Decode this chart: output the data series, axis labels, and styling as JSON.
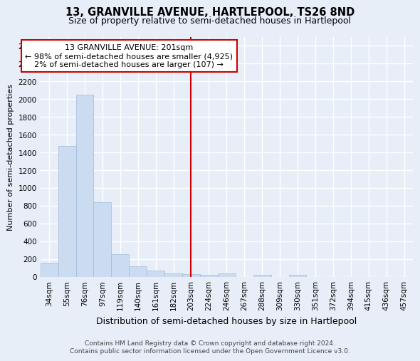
{
  "title": "13, GRANVILLE AVENUE, HARTLEPOOL, TS26 8ND",
  "subtitle": "Size of property relative to semi-detached houses in Hartlepool",
  "xlabel": "Distribution of semi-detached houses by size in Hartlepool",
  "ylabel": "Number of semi-detached properties",
  "categories": [
    "34sqm",
    "55sqm",
    "76sqm",
    "97sqm",
    "119sqm",
    "140sqm",
    "161sqm",
    "182sqm",
    "203sqm",
    "224sqm",
    "246sqm",
    "267sqm",
    "288sqm",
    "309sqm",
    "330sqm",
    "351sqm",
    "372sqm",
    "394sqm",
    "415sqm",
    "436sqm",
    "457sqm"
  ],
  "values": [
    155,
    1475,
    2050,
    840,
    255,
    115,
    70,
    40,
    30,
    20,
    35,
    0,
    25,
    0,
    20,
    0,
    0,
    0,
    0,
    0,
    0
  ],
  "bar_color": "#ccdcf0",
  "bar_edge_color": "#a0bcd8",
  "ylim": [
    0,
    2700
  ],
  "yticks": [
    0,
    200,
    400,
    600,
    800,
    1000,
    1200,
    1400,
    1600,
    1800,
    2000,
    2200,
    2400,
    2600
  ],
  "vline_index": 8,
  "vline_color": "#cc0000",
  "annotation_line1": "13 GRANVILLE AVENUE: 201sqm",
  "annotation_line2": "← 98% of semi-detached houses are smaller (4,925)",
  "annotation_line3": "2% of semi-detached houses are larger (107) →",
  "annotation_box_facecolor": "#ffffff",
  "annotation_box_edgecolor": "#cc0000",
  "bg_color": "#e8eef8",
  "grid_color": "#ffffff",
  "title_fontsize": 10.5,
  "subtitle_fontsize": 9,
  "ylabel_fontsize": 8,
  "xlabel_fontsize": 9,
  "tick_fontsize": 7.5,
  "annotation_fontsize": 8,
  "footer_fontsize": 6.5,
  "footer_line1": "Contains HM Land Registry data © Crown copyright and database right 2024.",
  "footer_line2": "Contains public sector information licensed under the Open Government Licence v3.0."
}
